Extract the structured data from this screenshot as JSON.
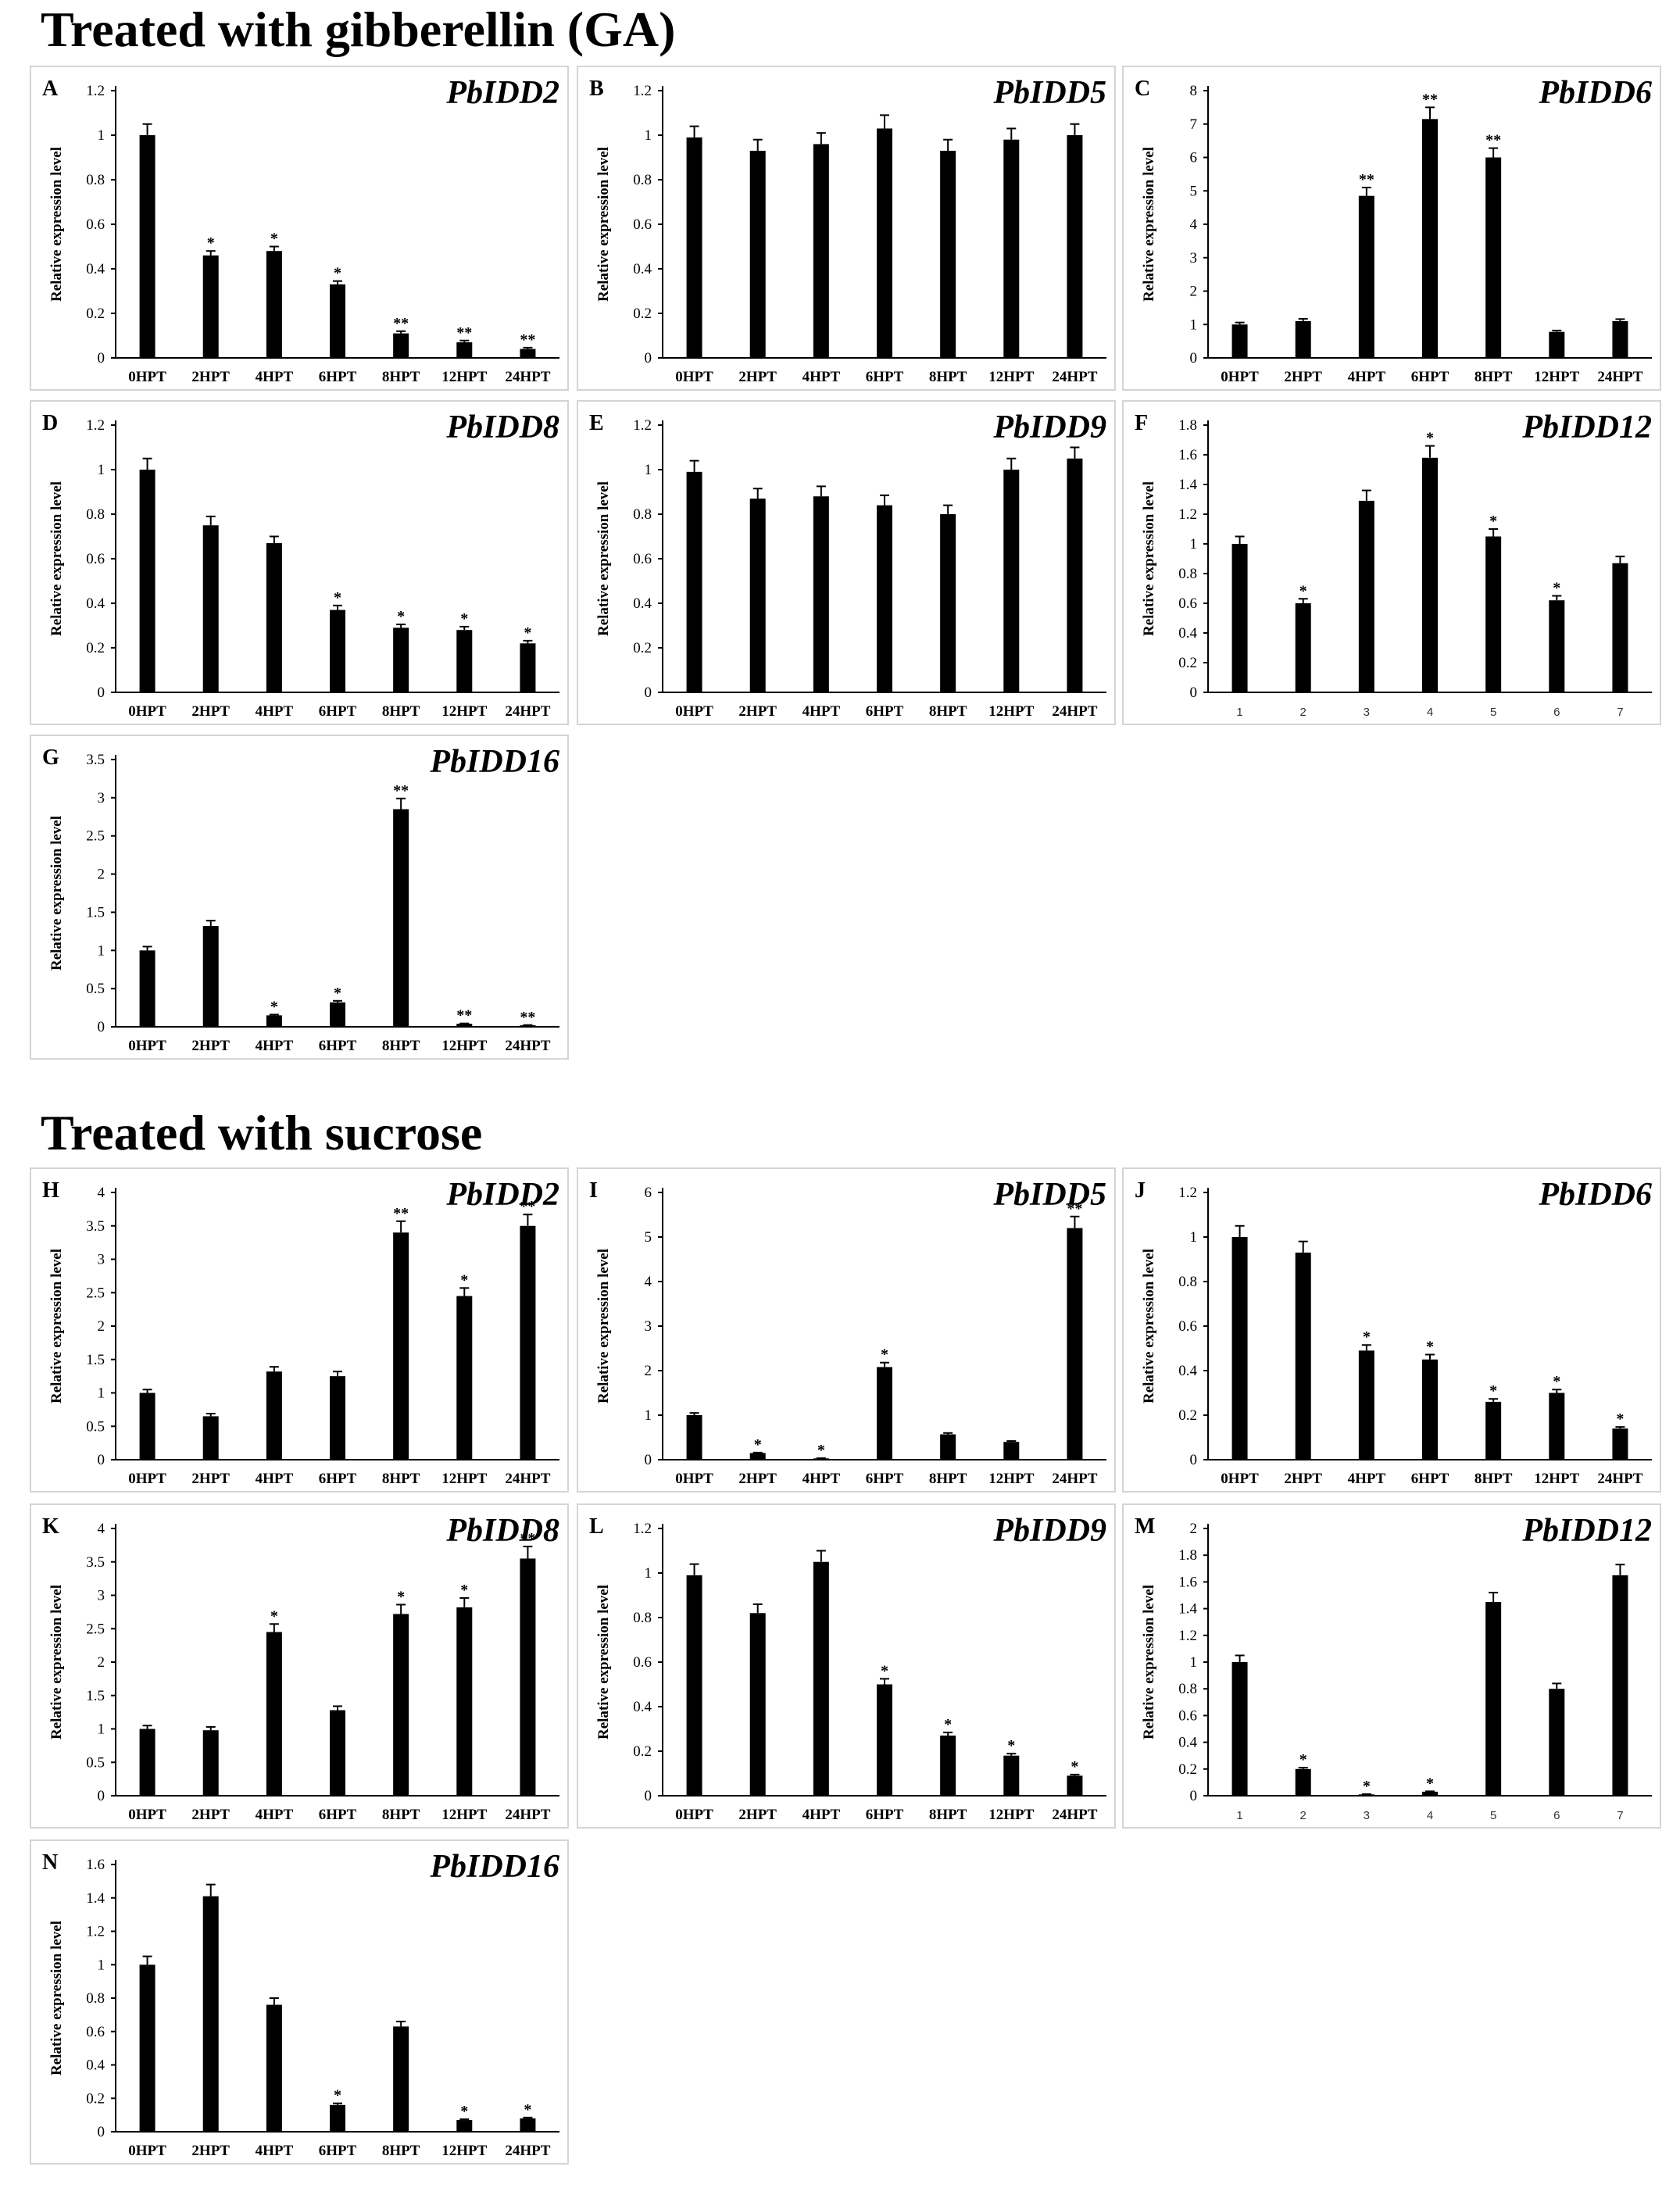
{
  "sections": [
    {
      "title": "Treated with gibberellin (GA)"
    },
    {
      "title": "Treated with sucrose"
    }
  ],
  "chart_data": [
    {
      "panel": "A",
      "title": "PbIDD2",
      "type": "bar",
      "ylabel": "Relative expression level",
      "ylim": [
        0,
        1.2
      ],
      "yticks": [
        "0",
        "0.2",
        "0.4",
        "0.6",
        "0.8",
        "1",
        "1.2"
      ],
      "categories": [
        "0HPT",
        "2HPT",
        "4HPT",
        "6HPT",
        "8HPT",
        "12HPT",
        "24HPT"
      ],
      "values": [
        1.0,
        0.46,
        0.48,
        0.33,
        0.11,
        0.07,
        0.04
      ],
      "errors": [
        0.05,
        0.02,
        0.02,
        0.015,
        0.01,
        0.008,
        0.006
      ],
      "significance": [
        "",
        "*",
        "*",
        "*",
        "**",
        "**",
        "**"
      ]
    },
    {
      "panel": "B",
      "title": "PbIDD5",
      "type": "bar",
      "ylabel": "Relative expression level",
      "ylim": [
        0,
        1.2
      ],
      "yticks": [
        "0",
        "0.2",
        "0.4",
        "0.6",
        "0.8",
        "1",
        "1.2"
      ],
      "categories": [
        "0HPT",
        "2HPT",
        "4HPT",
        "6HPT",
        "8HPT",
        "12HPT",
        "24HPT"
      ],
      "values": [
        0.99,
        0.93,
        0.96,
        1.03,
        0.93,
        0.98,
        1.0
      ],
      "errors": [
        0.05,
        0.05,
        0.05,
        0.06,
        0.05,
        0.05,
        0.05
      ],
      "significance": [
        "",
        "",
        "",
        "",
        "",
        "",
        ""
      ]
    },
    {
      "panel": "C",
      "title": "PbIDD6",
      "type": "bar",
      "ylabel": "Relative expression level",
      "ylim": [
        0,
        8
      ],
      "yticks": [
        "0",
        "1",
        "2",
        "3",
        "4",
        "5",
        "6",
        "7",
        "8"
      ],
      "categories": [
        "0HPT",
        "2HPT",
        "4HPT",
        "6HPT",
        "8HPT",
        "12HPT",
        "24HPT"
      ],
      "values": [
        1.0,
        1.1,
        4.85,
        7.15,
        6.0,
        0.78,
        1.1
      ],
      "errors": [
        0.06,
        0.07,
        0.25,
        0.35,
        0.28,
        0.04,
        0.06
      ],
      "significance": [
        "",
        "",
        "**",
        "**",
        "**",
        "",
        ""
      ]
    },
    {
      "panel": "D",
      "title": "PbIDD8",
      "type": "bar",
      "ylabel": "Relative expression level",
      "ylim": [
        0,
        1.2
      ],
      "yticks": [
        "0",
        "0.2",
        "0.4",
        "0.6",
        "0.8",
        "1",
        "1.2"
      ],
      "categories": [
        "0HPT",
        "2HPT",
        "4HPT",
        "6HPT",
        "8HPT",
        "12HPT",
        "24HPT"
      ],
      "values": [
        1.0,
        0.75,
        0.67,
        0.37,
        0.29,
        0.28,
        0.22
      ],
      "errors": [
        0.05,
        0.04,
        0.03,
        0.02,
        0.015,
        0.015,
        0.012
      ],
      "significance": [
        "",
        "",
        "",
        "*",
        "*",
        "*",
        "*"
      ]
    },
    {
      "panel": "E",
      "title": "PbIDD9",
      "type": "bar",
      "ylabel": "Relative expression level",
      "ylim": [
        0,
        1.2
      ],
      "yticks": [
        "0",
        "0.2",
        "0.4",
        "0.6",
        "0.8",
        "1",
        "1.2"
      ],
      "categories": [
        "0HPT",
        "2HPT",
        "4HPT",
        "6HPT",
        "8HPT",
        "12HPT",
        "24HPT"
      ],
      "values": [
        0.99,
        0.87,
        0.88,
        0.84,
        0.8,
        1.0,
        1.05
      ],
      "errors": [
        0.05,
        0.045,
        0.045,
        0.045,
        0.04,
        0.05,
        0.05
      ],
      "significance": [
        "",
        "",
        "",
        "",
        "",
        "",
        ""
      ]
    },
    {
      "panel": "F",
      "title": "PbIDD12",
      "type": "bar",
      "ylabel": "Relative expression level",
      "ylim": [
        0,
        1.8
      ],
      "yticks": [
        "0",
        "0.2",
        "0.4",
        "0.6",
        "0.8",
        "1",
        "1.2",
        "1.4",
        "1.6",
        "1.8"
      ],
      "categories": [
        "1",
        "2",
        "3",
        "4",
        "5",
        "6",
        "7"
      ],
      "values": [
        1.0,
        0.6,
        1.29,
        1.58,
        1.05,
        0.62,
        0.87
      ],
      "errors": [
        0.05,
        0.03,
        0.07,
        0.08,
        0.05,
        0.03,
        0.045
      ],
      "significance": [
        "",
        "*",
        "",
        "*",
        "*",
        "*",
        ""
      ]
    },
    {
      "panel": "G",
      "title": "PbIDD16",
      "type": "bar",
      "ylabel": "Relative expression level",
      "ylim": [
        0,
        3.5
      ],
      "yticks": [
        "0",
        "0.5",
        "1",
        "1.5",
        "2",
        "2.5",
        "3",
        "3.5"
      ],
      "categories": [
        "0HPT",
        "2HPT",
        "4HPT",
        "6HPT",
        "8HPT",
        "12HPT",
        "24HPT"
      ],
      "values": [
        1.0,
        1.32,
        0.15,
        0.32,
        2.85,
        0.04,
        0.02
      ],
      "errors": [
        0.05,
        0.07,
        0.01,
        0.02,
        0.14,
        0.004,
        0.003
      ],
      "significance": [
        "",
        "",
        "*",
        "*",
        "**",
        "**",
        "**"
      ]
    },
    {
      "panel": "H",
      "title": "PbIDD2",
      "type": "bar",
      "ylabel": "Relative expression level",
      "ylim": [
        0,
        4
      ],
      "yticks": [
        "0",
        "0.5",
        "1",
        "1.5",
        "2",
        "2.5",
        "3",
        "3.5",
        "4"
      ],
      "categories": [
        "0HPT",
        "2HPT",
        "4HPT",
        "6HPT",
        "8HPT",
        "12HPT",
        "24HPT"
      ],
      "values": [
        1.0,
        0.65,
        1.32,
        1.25,
        3.4,
        2.45,
        3.5
      ],
      "errors": [
        0.05,
        0.04,
        0.07,
        0.07,
        0.17,
        0.12,
        0.17
      ],
      "significance": [
        "",
        "",
        "",
        "",
        "**",
        "*",
        "**"
      ]
    },
    {
      "panel": "I",
      "title": "PbIDD5",
      "type": "bar",
      "ylabel": "Relative expression level",
      "ylim": [
        0,
        6
      ],
      "yticks": [
        "0",
        "1",
        "2",
        "3",
        "4",
        "5",
        "6"
      ],
      "categories": [
        "0HPT",
        "2HPT",
        "4HPT",
        "6HPT",
        "8HPT",
        "12HPT",
        "24HPT"
      ],
      "values": [
        1.0,
        0.15,
        0.03,
        2.08,
        0.57,
        0.4,
        5.2
      ],
      "errors": [
        0.05,
        0.01,
        0.004,
        0.1,
        0.03,
        0.02,
        0.26
      ],
      "significance": [
        "",
        "*",
        "*",
        "*",
        "",
        "",
        "**"
      ]
    },
    {
      "panel": "J",
      "title": "PbIDD6",
      "type": "bar",
      "ylabel": "Relative expression level",
      "ylim": [
        0,
        1.2
      ],
      "yticks": [
        "0",
        "0.2",
        "0.4",
        "0.6",
        "0.8",
        "1",
        "1.2"
      ],
      "categories": [
        "0HPT",
        "2HPT",
        "4HPT",
        "6HPT",
        "8HPT",
        "12HPT",
        "24HPT"
      ],
      "values": [
        1.0,
        0.93,
        0.49,
        0.45,
        0.26,
        0.3,
        0.14
      ],
      "errors": [
        0.05,
        0.05,
        0.025,
        0.022,
        0.013,
        0.015,
        0.007
      ],
      "significance": [
        "",
        "",
        "*",
        "*",
        "*",
        "*",
        "*"
      ]
    },
    {
      "panel": "K",
      "title": "PbIDD8",
      "type": "bar",
      "ylabel": "Relative expression level",
      "ylim": [
        0,
        4
      ],
      "yticks": [
        "0",
        "0.5",
        "1",
        "1.5",
        "2",
        "2.5",
        "3",
        "3.5",
        "4"
      ],
      "categories": [
        "0HPT",
        "2HPT",
        "4HPT",
        "6HPT",
        "8HPT",
        "12HPT",
        "24HPT"
      ],
      "values": [
        1.0,
        0.98,
        2.45,
        1.28,
        2.72,
        2.82,
        3.55
      ],
      "errors": [
        0.05,
        0.05,
        0.12,
        0.06,
        0.14,
        0.14,
        0.18
      ],
      "significance": [
        "",
        "",
        "*",
        "",
        "*",
        "*",
        "**"
      ]
    },
    {
      "panel": "L",
      "title": "PbIDD9",
      "type": "bar",
      "ylabel": "Relative expression level",
      "ylim": [
        0,
        1.2
      ],
      "yticks": [
        "0",
        "0.2",
        "0.4",
        "0.6",
        "0.8",
        "1",
        "1.2"
      ],
      "categories": [
        "0HPT",
        "2HPT",
        "4HPT",
        "6HPT",
        "8HPT",
        "12HPT",
        "24HPT"
      ],
      "values": [
        0.99,
        0.82,
        1.05,
        0.5,
        0.27,
        0.18,
        0.09
      ],
      "errors": [
        0.05,
        0.04,
        0.05,
        0.025,
        0.014,
        0.009,
        0.005
      ],
      "significance": [
        "",
        "",
        "",
        "*",
        "*",
        "*",
        "*"
      ]
    },
    {
      "panel": "M",
      "title": "PbIDD12",
      "type": "bar",
      "ylabel": "Relative expression level",
      "ylim": [
        0,
        2
      ],
      "yticks": [
        "0",
        "0.2",
        "0.4",
        "0.6",
        "0.8",
        "1",
        "1.2",
        "1.4",
        "1.6",
        "1.8",
        "2"
      ],
      "categories": [
        "1",
        "2",
        "3",
        "4",
        "5",
        "6",
        "7"
      ],
      "values": [
        1.0,
        0.2,
        0.01,
        0.03,
        1.45,
        0.8,
        1.65
      ],
      "errors": [
        0.05,
        0.01,
        0.002,
        0.003,
        0.07,
        0.04,
        0.08
      ],
      "significance": [
        "",
        "*",
        "*",
        "*",
        "",
        "",
        ""
      ]
    },
    {
      "panel": "N",
      "title": "PbIDD16",
      "type": "bar",
      "ylabel": "Relative expression level",
      "ylim": [
        0,
        1.6
      ],
      "yticks": [
        "0",
        "0.2",
        "0.4",
        "0.6",
        "0.8",
        "1",
        "1.2",
        "1.4",
        "1.6"
      ],
      "categories": [
        "0HPT",
        "2HPT",
        "4HPT",
        "6HPT",
        "8HPT",
        "12HPT",
        "24HPT"
      ],
      "values": [
        1.0,
        1.41,
        0.76,
        0.16,
        0.63,
        0.07,
        0.08
      ],
      "errors": [
        0.05,
        0.07,
        0.04,
        0.01,
        0.03,
        0.005,
        0.005
      ],
      "significance": [
        "",
        "",
        "",
        "*",
        "",
        "*",
        "*"
      ]
    }
  ]
}
